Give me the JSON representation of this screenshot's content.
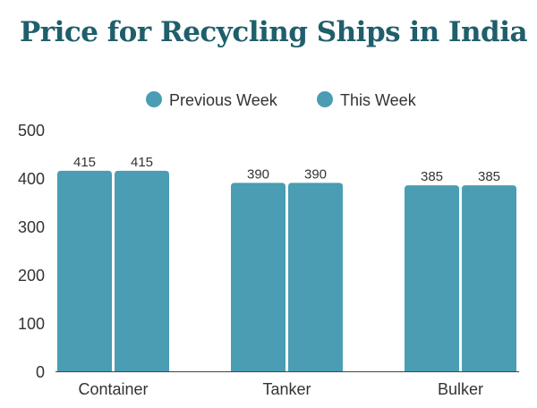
{
  "title": "Price for Recycling Ships in India",
  "colors": {
    "bar": "#4a9db3",
    "title": "#1f5f6b",
    "axis": "#444444"
  },
  "chart_data": {
    "type": "bar",
    "title": "Price for Recycling Ships in India",
    "categories": [
      "Container",
      "Tanker",
      "Bulker"
    ],
    "series": [
      {
        "name": "Previous Week",
        "values": [
          415,
          390,
          385
        ]
      },
      {
        "name": "This Week",
        "values": [
          415,
          390,
          385
        ]
      }
    ],
    "ylim": [
      0,
      500
    ],
    "yticks": [
      0,
      100,
      200,
      300,
      400,
      500
    ],
    "legend": "top-center",
    "grid": false
  }
}
